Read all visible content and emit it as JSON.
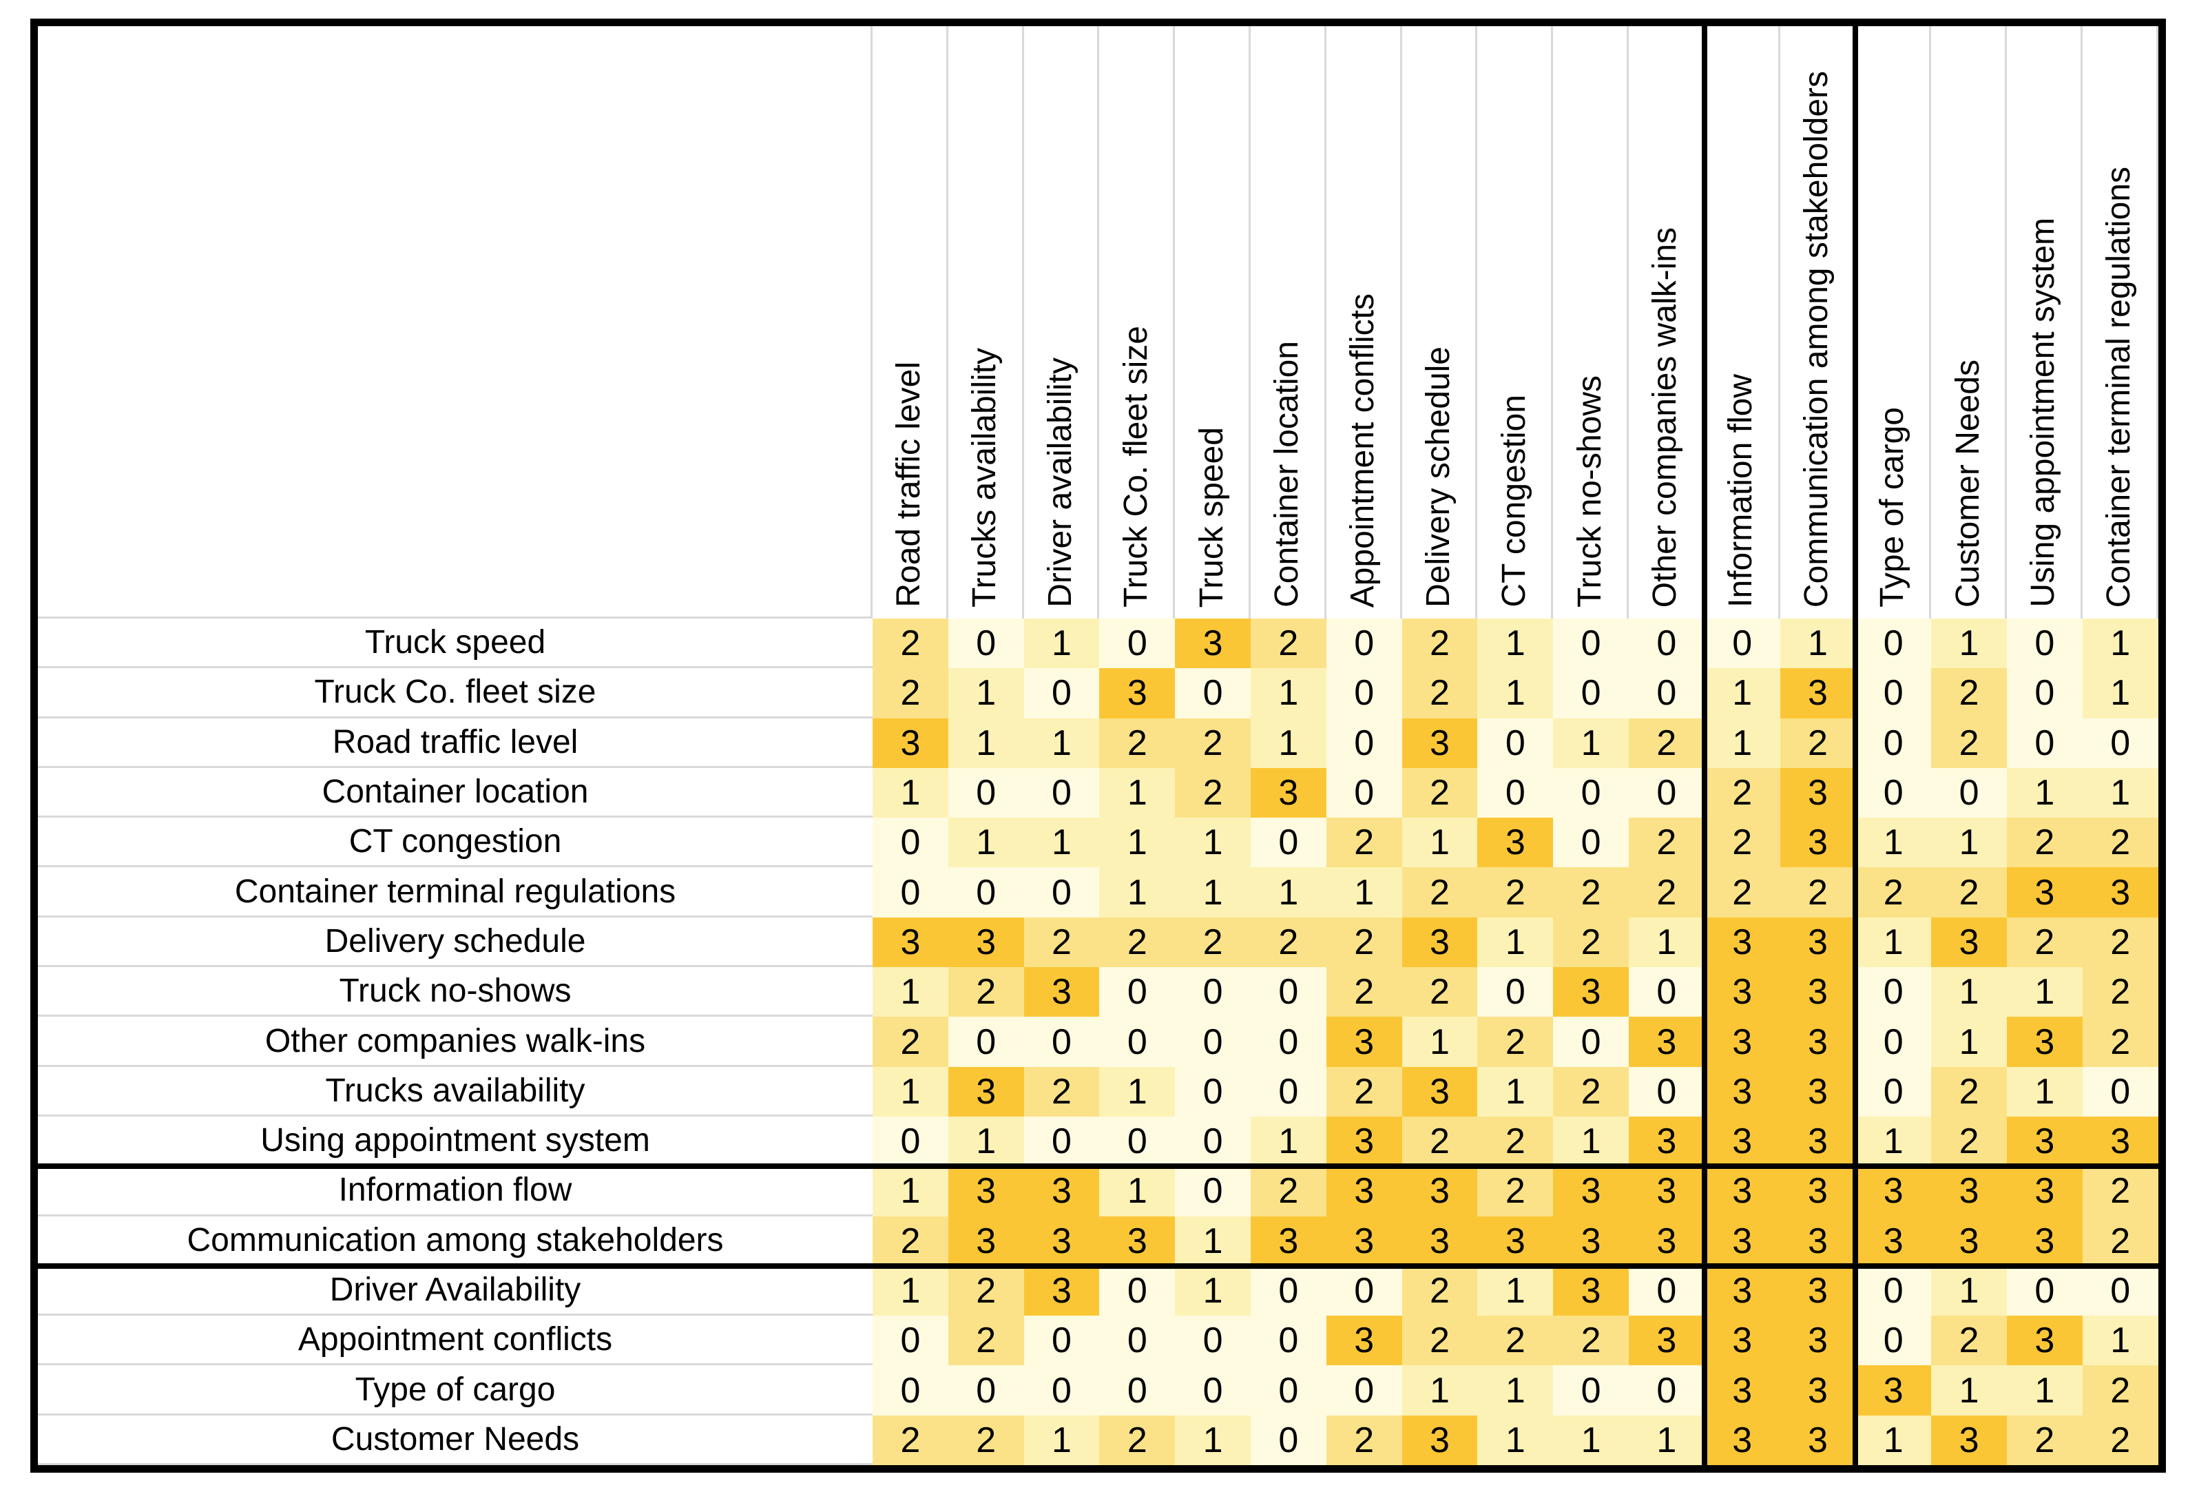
{
  "chart_data": {
    "type": "heatmap",
    "title": "",
    "columns": [
      "Road traffic level",
      "Trucks availability",
      "Driver availability",
      "Truck Co. fleet size",
      "Truck speed",
      "Container location",
      "Appointment conflicts",
      "Delivery schedule",
      "CT congestion",
      "Truck no-shows",
      "Other companies walk-ins",
      "Information flow",
      "Communication among stakeholders",
      "Type of cargo",
      "Customer Needs",
      "Using appointment system",
      "Container terminal regulations"
    ],
    "rows": [
      {
        "label": "Truck speed",
        "values": [
          2,
          0,
          1,
          0,
          3,
          2,
          0,
          2,
          1,
          0,
          0,
          0,
          1,
          0,
          1,
          0,
          1
        ]
      },
      {
        "label": "Truck Co. fleet size",
        "values": [
          2,
          1,
          0,
          3,
          0,
          1,
          0,
          2,
          1,
          0,
          0,
          1,
          3,
          0,
          2,
          0,
          1
        ]
      },
      {
        "label": "Road traffic level",
        "values": [
          3,
          1,
          1,
          2,
          2,
          1,
          0,
          3,
          0,
          1,
          2,
          1,
          2,
          0,
          2,
          0,
          0
        ]
      },
      {
        "label": "Container location",
        "values": [
          1,
          0,
          0,
          1,
          2,
          3,
          0,
          2,
          0,
          0,
          0,
          2,
          3,
          0,
          0,
          1,
          1
        ]
      },
      {
        "label": "CT congestion",
        "values": [
          0,
          1,
          1,
          1,
          1,
          0,
          2,
          1,
          3,
          0,
          2,
          2,
          3,
          1,
          1,
          2,
          2
        ]
      },
      {
        "label": "Container terminal regulations",
        "values": [
          0,
          0,
          0,
          1,
          1,
          1,
          1,
          2,
          2,
          2,
          2,
          2,
          2,
          2,
          2,
          3,
          3
        ]
      },
      {
        "label": "Delivery schedule",
        "values": [
          3,
          3,
          2,
          2,
          2,
          2,
          2,
          3,
          1,
          2,
          1,
          3,
          3,
          1,
          3,
          2,
          2
        ]
      },
      {
        "label": "Truck no-shows",
        "values": [
          1,
          2,
          3,
          0,
          0,
          0,
          2,
          2,
          0,
          3,
          0,
          3,
          3,
          0,
          1,
          1,
          2
        ]
      },
      {
        "label": "Other companies walk-ins",
        "values": [
          2,
          0,
          0,
          0,
          0,
          0,
          3,
          1,
          2,
          0,
          3,
          3,
          3,
          0,
          1,
          3,
          2
        ]
      },
      {
        "label": "Trucks availability",
        "values": [
          1,
          3,
          2,
          1,
          0,
          0,
          2,
          3,
          1,
          2,
          0,
          3,
          3,
          0,
          2,
          1,
          0
        ]
      },
      {
        "label": "Using appointment system",
        "values": [
          0,
          1,
          0,
          0,
          0,
          1,
          3,
          2,
          2,
          1,
          3,
          3,
          3,
          1,
          2,
          3,
          3
        ]
      },
      {
        "label": "Information flow",
        "values": [
          1,
          3,
          3,
          1,
          0,
          2,
          3,
          3,
          2,
          3,
          3,
          3,
          3,
          3,
          3,
          3,
          2
        ]
      },
      {
        "label": "Communication among stakeholders",
        "values": [
          2,
          3,
          3,
          3,
          1,
          3,
          3,
          3,
          3,
          3,
          3,
          3,
          3,
          3,
          3,
          3,
          2
        ]
      },
      {
        "label": "Driver Availability",
        "values": [
          1,
          2,
          3,
          0,
          1,
          0,
          0,
          2,
          1,
          3,
          0,
          3,
          3,
          0,
          1,
          0,
          0
        ]
      },
      {
        "label": "Appointment conflicts",
        "values": [
          0,
          2,
          0,
          0,
          0,
          0,
          3,
          2,
          2,
          2,
          3,
          3,
          3,
          0,
          2,
          3,
          1
        ]
      },
      {
        "label": "Type of cargo",
        "values": [
          0,
          0,
          0,
          0,
          0,
          0,
          0,
          1,
          1,
          0,
          0,
          3,
          3,
          3,
          1,
          1,
          2
        ]
      },
      {
        "label": "Customer Needs",
        "values": [
          2,
          2,
          1,
          2,
          1,
          0,
          2,
          3,
          1,
          1,
          1,
          3,
          3,
          1,
          3,
          2,
          2
        ]
      }
    ],
    "value_colors": {
      "0": "#FFFBE1",
      "1": "#FDF2B6",
      "2": "#FBE288",
      "3": "#FBC636"
    },
    "highlighted_columns": [
      "Information flow",
      "Communication among stakeholders"
    ],
    "highlighted_rows": [
      "Information flow",
      "Communication among stakeholders"
    ],
    "value_range": [
      0,
      3
    ],
    "gridline_color": "#D9D9D9",
    "border_color": "#000000",
    "legend_position": "none",
    "grid": false
  }
}
